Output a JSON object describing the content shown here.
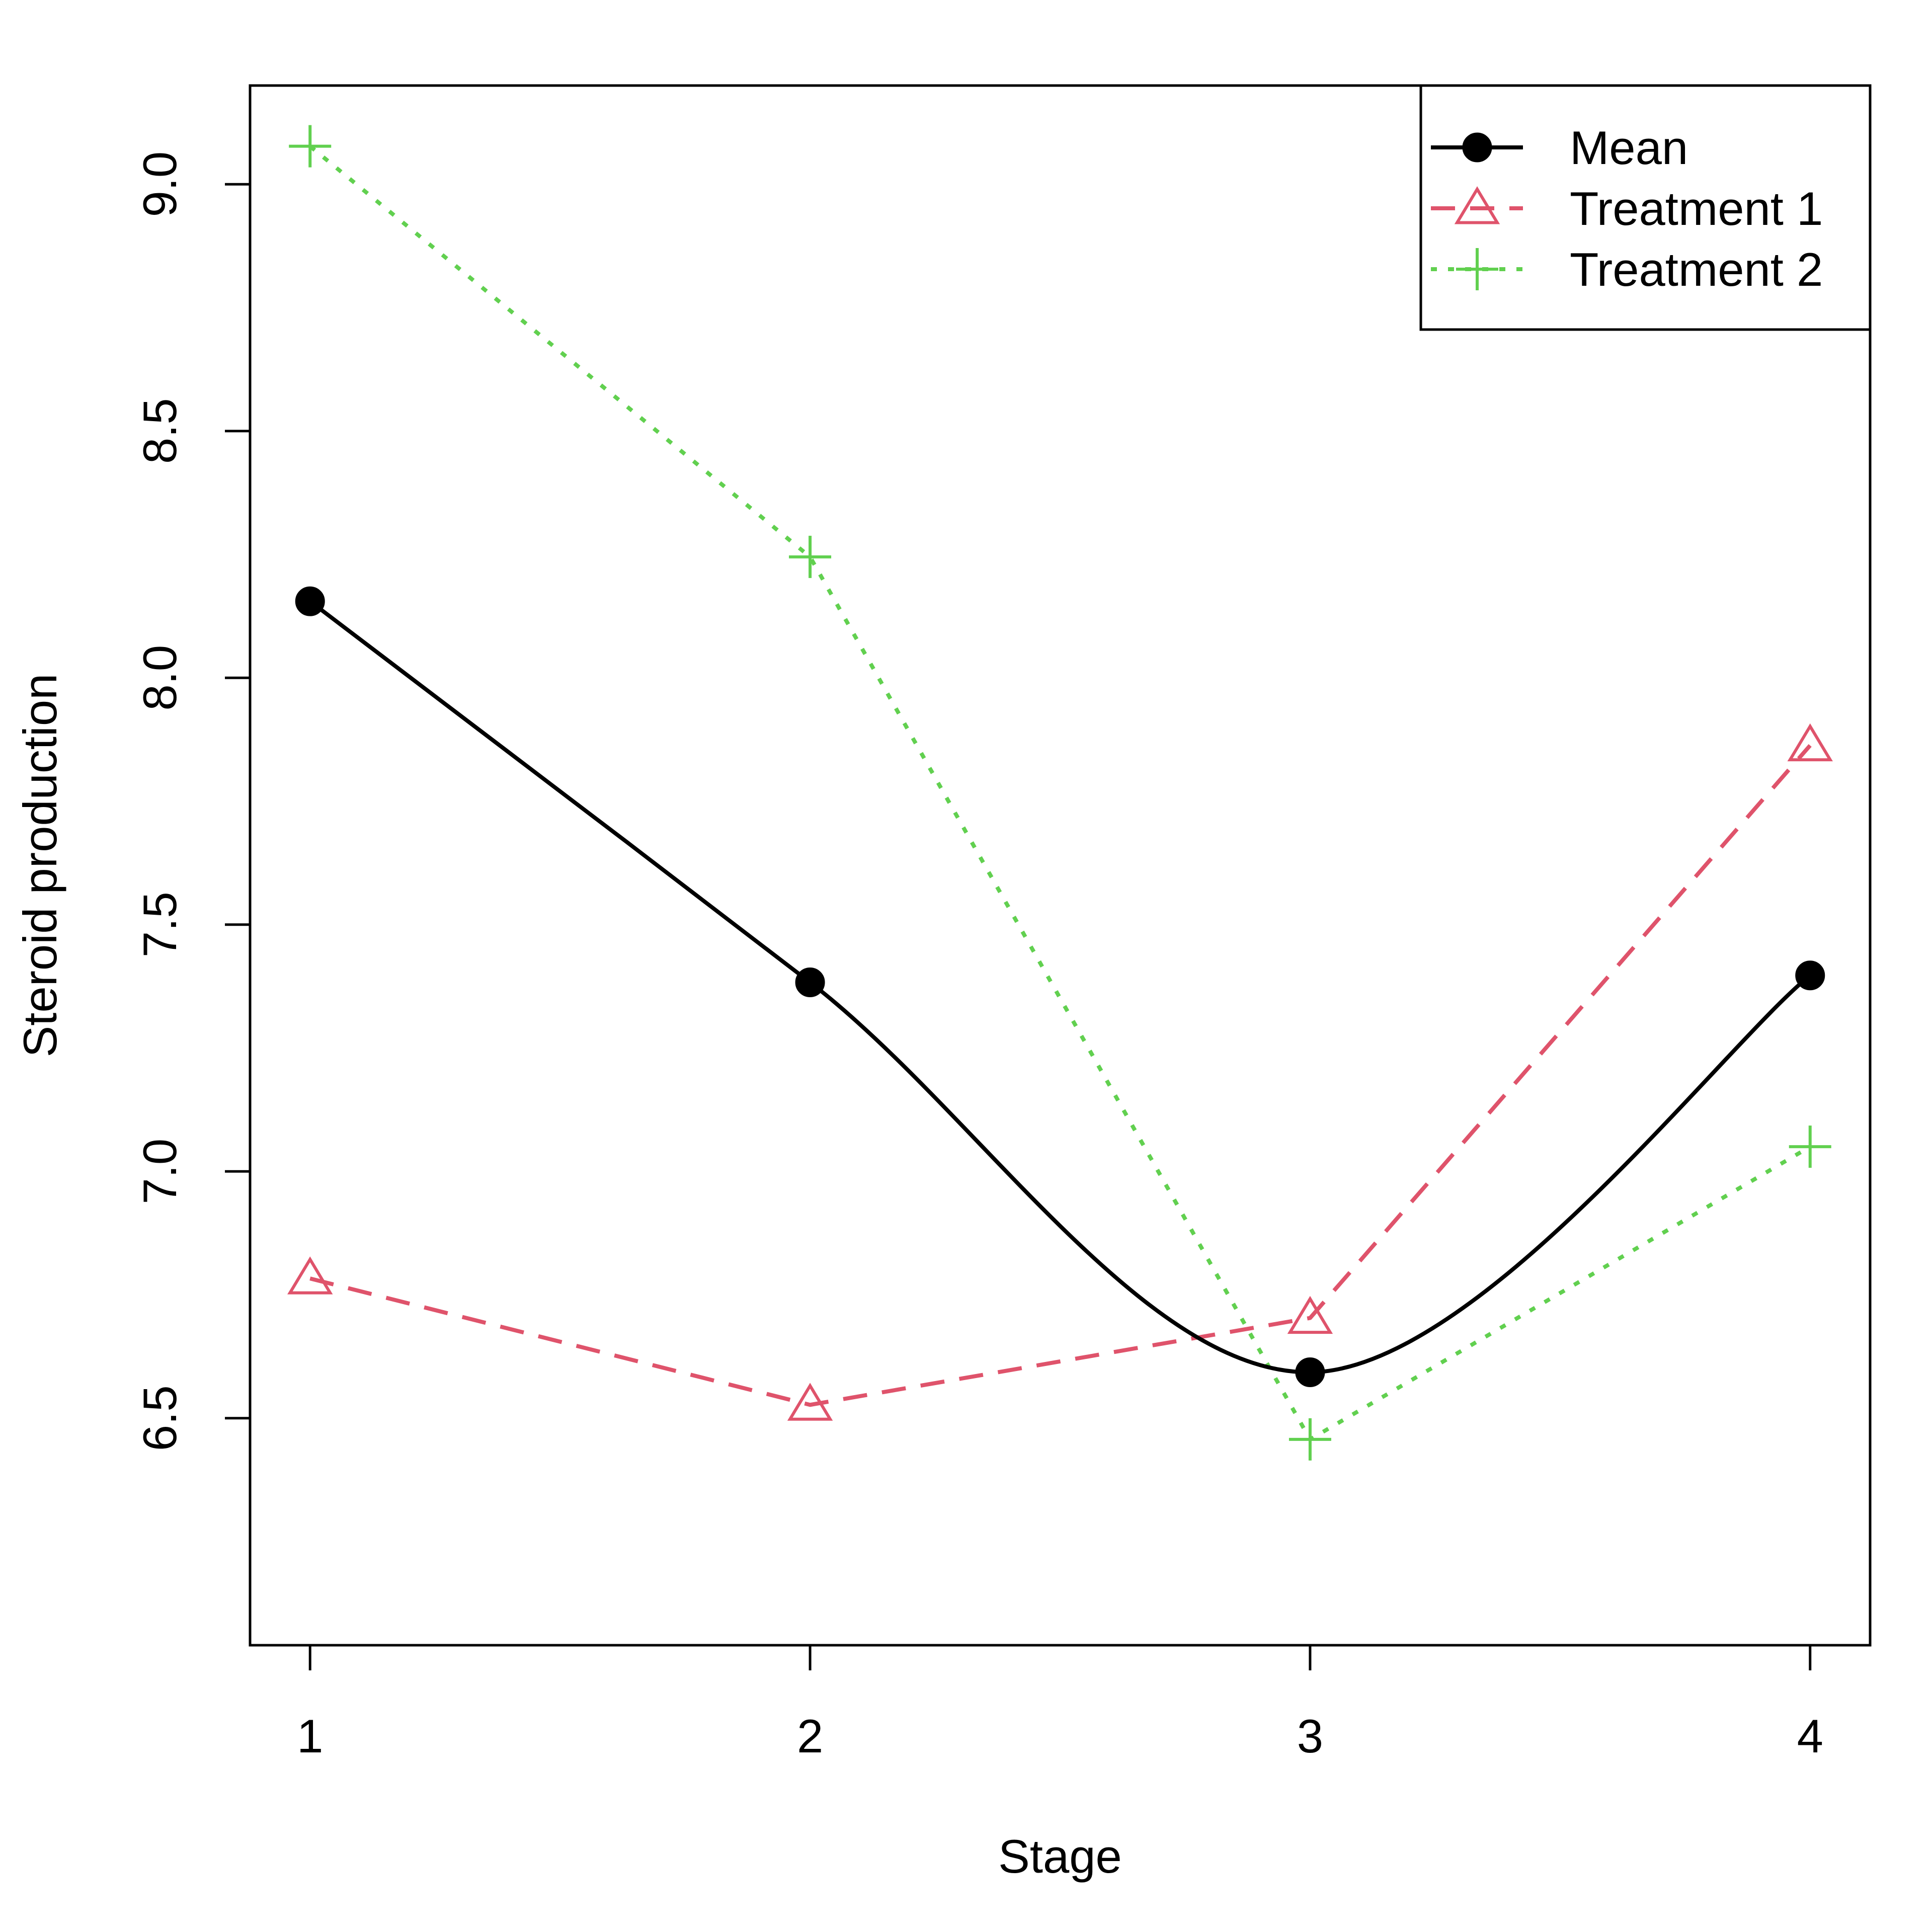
{
  "chart_data": {
    "type": "line",
    "title": "",
    "xlabel": "Stage",
    "ylabel": "Steroid production",
    "x": [
      1,
      2,
      3,
      4
    ],
    "xlim": [
      0.88,
      4.12
    ],
    "ylim": [
      6.04,
      9.2
    ],
    "xticks": [
      1,
      2,
      3,
      4
    ],
    "xtick_labels": [
      "1",
      "2",
      "3",
      "4"
    ],
    "yticks": [
      6.5,
      7.0,
      7.5,
      8.0,
      8.5,
      9.0
    ],
    "ytick_labels": [
      "6.5",
      "7.0",
      "7.5",
      "8.0",
      "8.5",
      "9.0"
    ],
    "grid": false,
    "legend_position": "top-right",
    "series": [
      {
        "name": "Mean",
        "values": [
          8.155,
          7.383,
          6.593,
          7.397
        ],
        "color": "#000000",
        "marker": "filled-circle",
        "line_style": "solid",
        "smooth": true
      },
      {
        "name": "Treatment 1",
        "values": [
          6.783,
          6.527,
          6.703,
          7.863
        ],
        "color": "#DF536B",
        "marker": "open-triangle",
        "line_style": "dashed",
        "smooth": false
      },
      {
        "name": "Treatment 2",
        "values": [
          9.077,
          8.245,
          6.457,
          7.05
        ],
        "color": "#61D04F",
        "marker": "plus",
        "line_style": "dotted",
        "smooth": false
      }
    ]
  }
}
